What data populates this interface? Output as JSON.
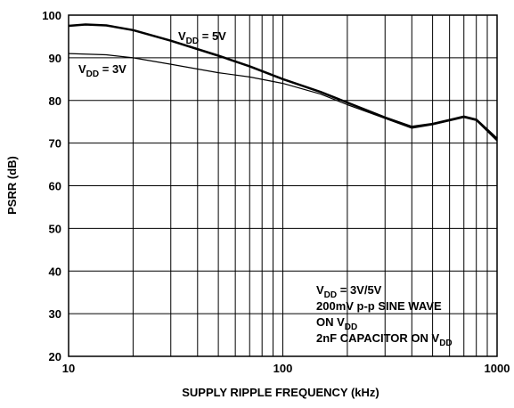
{
  "chart_data": {
    "type": "line",
    "xlabel": "SUPPLY RIPPLE FREQUENCY (kHz)",
    "ylabel": "PSRR (dB)",
    "xscale": "log",
    "xlim": [
      10,
      1000
    ],
    "xticks": [
      10,
      100,
      1000
    ],
    "ylim": [
      20,
      100
    ],
    "yticks": [
      20,
      30,
      40,
      50,
      60,
      70,
      80,
      90,
      100
    ],
    "grid": true,
    "minor_grid": true,
    "series": [
      {
        "name": "VDD = 5V",
        "color": "#000000",
        "width": 2.5,
        "x": [
          10,
          12,
          15,
          20,
          30,
          50,
          70,
          100,
          150,
          200,
          300,
          400,
          500,
          700,
          800,
          1000
        ],
        "values": [
          97.5,
          97.8,
          97.6,
          96.5,
          94,
          90.5,
          88,
          85,
          82,
          79.5,
          76,
          73.8,
          74.5,
          76.2,
          75.5,
          71
        ]
      },
      {
        "name": "VDD = 3V",
        "color": "#000000",
        "width": 1.2,
        "x": [
          10,
          15,
          20,
          30,
          50,
          70,
          100,
          150,
          200,
          300,
          400,
          500,
          700,
          800,
          1000
        ],
        "values": [
          91,
          90.7,
          90,
          88.5,
          86.5,
          85.5,
          84,
          81.5,
          79,
          75.8,
          73.5,
          74.3,
          76,
          75.3,
          70.5
        ]
      }
    ],
    "annotations": [
      {
        "pre": "V",
        "sub": "DD",
        "post": " = 5V"
      },
      {
        "pre": "V",
        "sub": "DD",
        "post": " = 3V"
      },
      {
        "pre": "V",
        "sub": "DD",
        "post": " = 3V/5V"
      },
      {
        "pre": "200mV p-p SINE WAVE"
      },
      {
        "pre": "ON V",
        "sub": "DD"
      },
      {
        "pre": "2nF CAPACITOR ON V",
        "sub": "DD"
      }
    ]
  }
}
